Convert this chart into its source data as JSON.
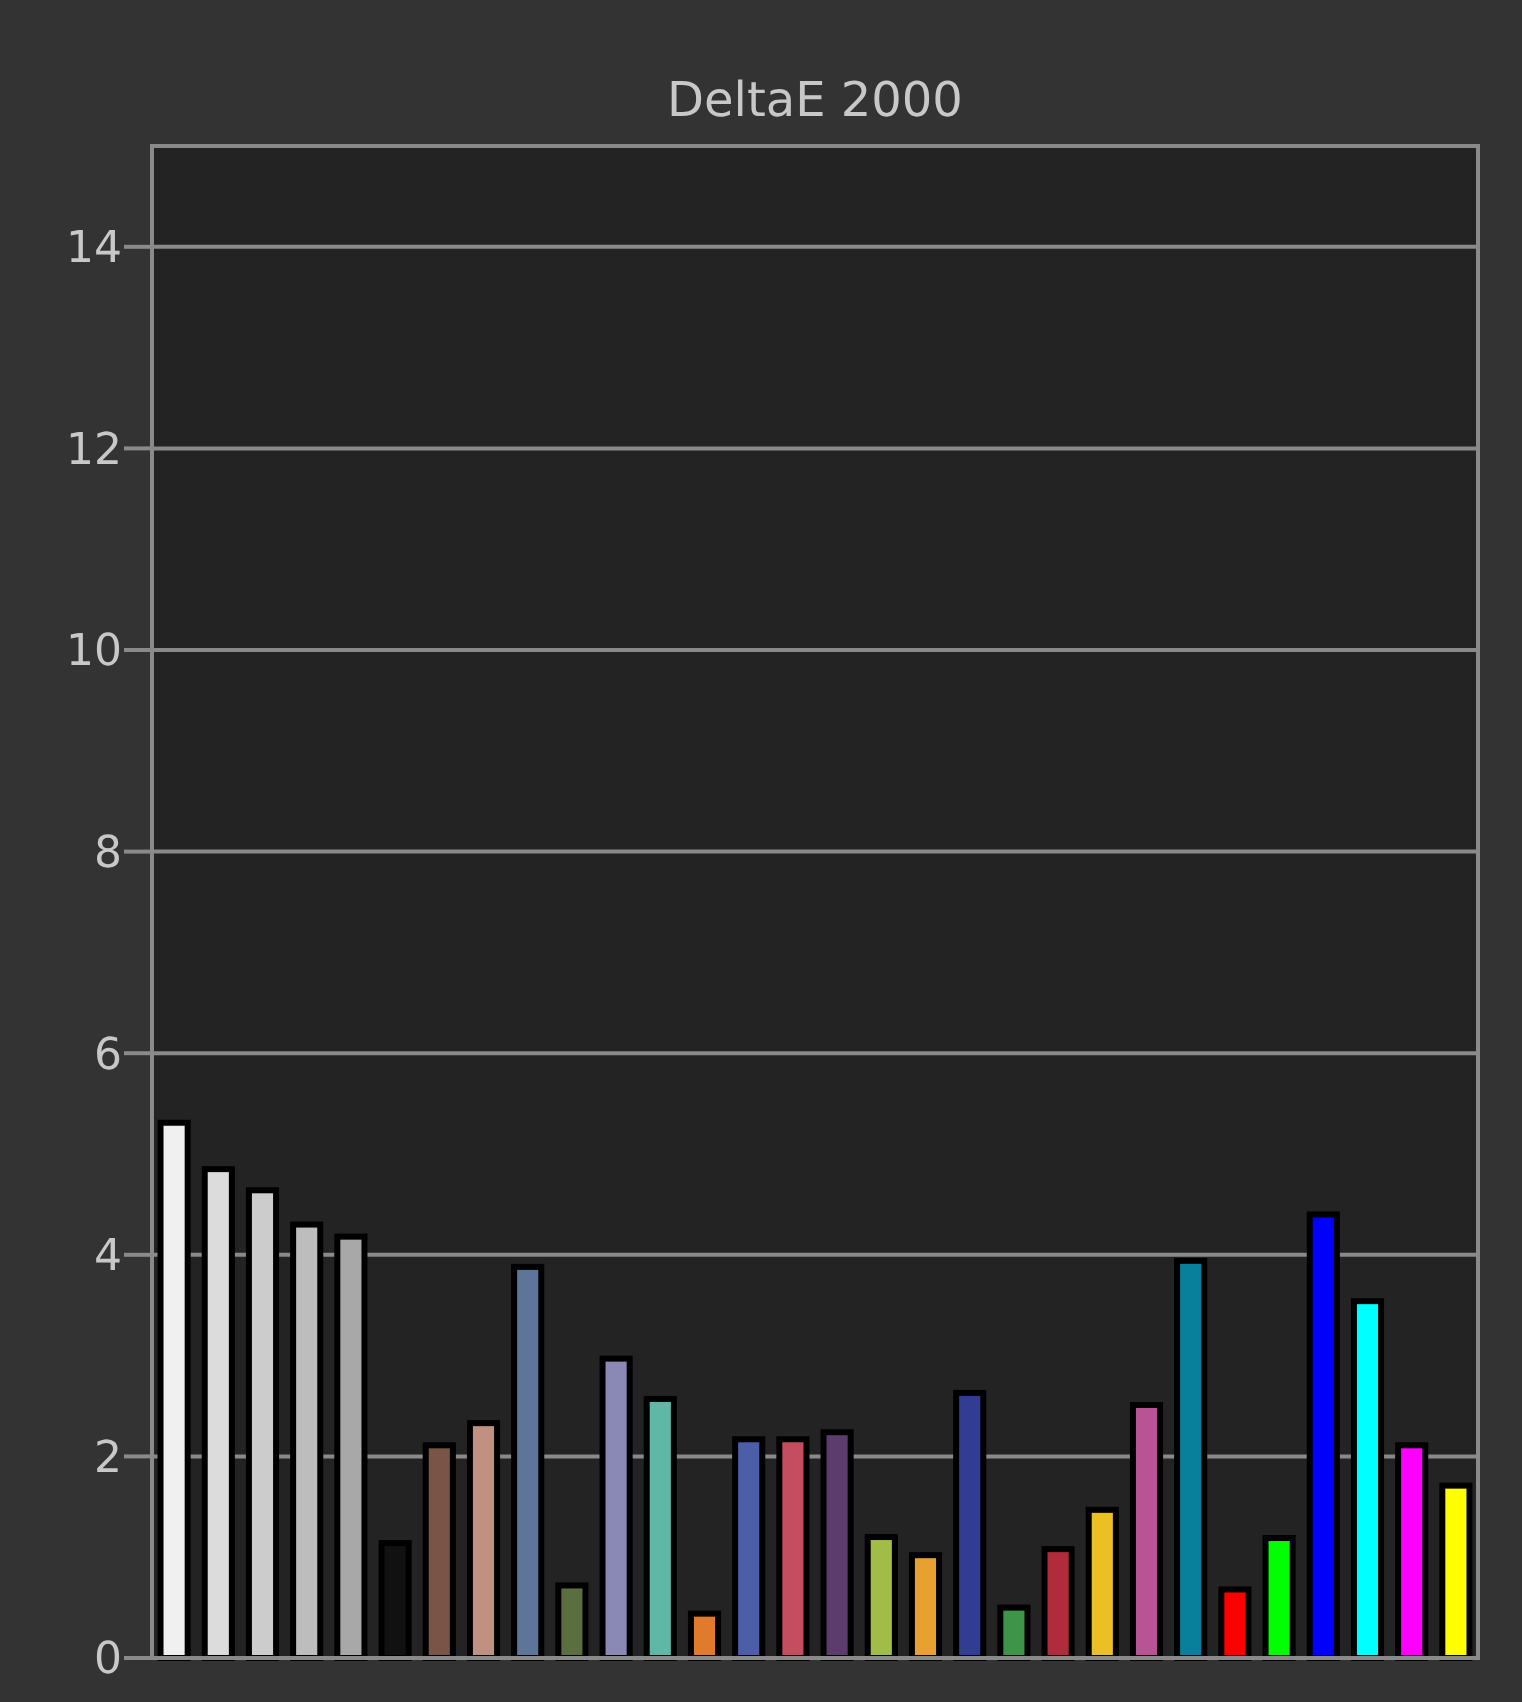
{
  "chart_data": {
    "type": "bar",
    "title": "DeltaE 2000",
    "categories": [
      null,
      null,
      null,
      null,
      null,
      null,
      null,
      null,
      null,
      null,
      null,
      null,
      null,
      null,
      null,
      null,
      null,
      null,
      null,
      null,
      null,
      null,
      null,
      null,
      null,
      null,
      null,
      null,
      null,
      null
    ],
    "values": [
      5.31,
      4.85,
      4.64,
      4.3,
      4.18,
      1.14,
      2.11,
      2.33,
      3.88,
      0.72,
      2.97,
      2.57,
      0.44,
      2.17,
      2.17,
      2.24,
      1.2,
      1.02,
      2.63,
      0.5,
      1.08,
      1.47,
      2.51,
      3.94,
      0.68,
      1.19,
      4.4,
      3.54,
      2.11,
      1.71
    ],
    "colors": [
      "#f0f0f0",
      "#dcdcdc",
      "#cccccc",
      "#bdbdbd",
      "#a8a8a8",
      "#111111",
      "#7a5446",
      "#c09080",
      "#5c7598",
      "#5a6e40",
      "#8a88b4",
      "#5fb8a6",
      "#e07a2c",
      "#4c5ea8",
      "#c44e60",
      "#5c3c6c",
      "#a2bc48",
      "#e8a030",
      "#323c92",
      "#3e9448",
      "#b02c3c",
      "#ecc024",
      "#b85494",
      "#08809c",
      "#ff0000",
      "#00ff00",
      "#0000ff",
      "#00ffff",
      "#ff00ff",
      "#ffff00"
    ],
    "ylim": [
      0,
      15
    ],
    "yticks": [
      0,
      2,
      4,
      6,
      8,
      10,
      12,
      14
    ],
    "grid": "y"
  }
}
